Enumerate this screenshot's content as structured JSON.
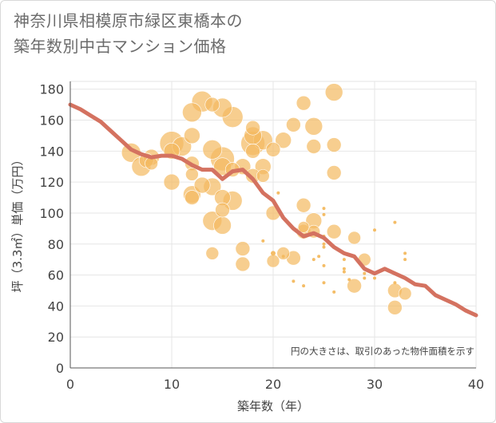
{
  "title_line1": "神奈川県相模原市緑区東橋本の",
  "title_line2": "築年数別中古マンション価格",
  "chart_data": {
    "type": "scatter",
    "title": "神奈川県相模原市緑区東橋本の築年数別中古マンション価格",
    "xlabel": "築年数（年）",
    "ylabel": "坪（3.3㎡）単価（万円）",
    "xlim": [
      0,
      40
    ],
    "ylim": [
      0,
      185
    ],
    "xticks": [
      0,
      10,
      20,
      30,
      40
    ],
    "yticks": [
      0,
      20,
      40,
      60,
      80,
      100,
      120,
      140,
      160,
      180
    ],
    "grid": true,
    "annotation": "円の大きさは、取引のあった物件面積を示す",
    "bubble_color": "#f3b95f",
    "line_color": "#d47260",
    "points": [
      {
        "x": 6,
        "y": 139,
        "s": 12
      },
      {
        "x": 7,
        "y": 130,
        "s": 12
      },
      {
        "x": 7.5,
        "y": 134,
        "s": 9
      },
      {
        "x": 8,
        "y": 136,
        "s": 10
      },
      {
        "x": 8,
        "y": 132,
        "s": 8
      },
      {
        "x": 10,
        "y": 145,
        "s": 15
      },
      {
        "x": 10,
        "y": 140,
        "s": 10
      },
      {
        "x": 10,
        "y": 120,
        "s": 10
      },
      {
        "x": 11,
        "y": 143,
        "s": 12
      },
      {
        "x": 12,
        "y": 165,
        "s": 12
      },
      {
        "x": 12,
        "y": 150,
        "s": 10
      },
      {
        "x": 12,
        "y": 132,
        "s": 9
      },
      {
        "x": 12,
        "y": 125,
        "s": 8
      },
      {
        "x": 12,
        "y": 112,
        "s": 11
      },
      {
        "x": 12,
        "y": 110,
        "s": 9
      },
      {
        "x": 13,
        "y": 172,
        "s": 13
      },
      {
        "x": 13,
        "y": 118,
        "s": 10
      },
      {
        "x": 14,
        "y": 170,
        "s": 9
      },
      {
        "x": 14,
        "y": 141,
        "s": 12
      },
      {
        "x": 14,
        "y": 117,
        "s": 11
      },
      {
        "x": 14,
        "y": 95,
        "s": 12
      },
      {
        "x": 14,
        "y": 74,
        "s": 8
      },
      {
        "x": 15,
        "y": 168,
        "s": 12
      },
      {
        "x": 15,
        "y": 135,
        "s": 15
      },
      {
        "x": 15,
        "y": 130,
        "s": 11
      },
      {
        "x": 15,
        "y": 110,
        "s": 10
      },
      {
        "x": 15,
        "y": 102,
        "s": 9
      },
      {
        "x": 15,
        "y": 92,
        "s": 11
      },
      {
        "x": 16,
        "y": 162,
        "s": 13
      },
      {
        "x": 16,
        "y": 128,
        "s": 9
      },
      {
        "x": 16,
        "y": 108,
        "s": 12
      },
      {
        "x": 17,
        "y": 130,
        "s": 10
      },
      {
        "x": 17,
        "y": 77,
        "s": 9
      },
      {
        "x": 17,
        "y": 67,
        "s": 9
      },
      {
        "x": 18,
        "y": 155,
        "s": 9
      },
      {
        "x": 18,
        "y": 150,
        "s": 11
      },
      {
        "x": 18,
        "y": 145,
        "s": 15
      },
      {
        "x": 18,
        "y": 140,
        "s": 9
      },
      {
        "x": 18,
        "y": 124,
        "s": 9
      },
      {
        "x": 19,
        "y": 147,
        "s": 12
      },
      {
        "x": 19,
        "y": 130,
        "s": 10
      },
      {
        "x": 19,
        "y": 124,
        "s": 8
      },
      {
        "x": 19,
        "y": 82,
        "s": 2
      },
      {
        "x": 20,
        "y": 141,
        "s": 9
      },
      {
        "x": 20,
        "y": 100,
        "s": 9
      },
      {
        "x": 20,
        "y": 74,
        "s": 3
      },
      {
        "x": 20,
        "y": 69,
        "s": 8
      },
      {
        "x": 20.5,
        "y": 113,
        "s": 2
      },
      {
        "x": 21,
        "y": 147,
        "s": 10
      },
      {
        "x": 21,
        "y": 74,
        "s": 8
      },
      {
        "x": 21,
        "y": 72,
        "s": 2
      },
      {
        "x": 22,
        "y": 157,
        "s": 9
      },
      {
        "x": 22,
        "y": 71,
        "s": 9
      },
      {
        "x": 22,
        "y": 56,
        "s": 2
      },
      {
        "x": 23,
        "y": 171,
        "s": 9
      },
      {
        "x": 23,
        "y": 105,
        "s": 9
      },
      {
        "x": 23,
        "y": 91,
        "s": 7
      },
      {
        "x": 23,
        "y": 88,
        "s": 9
      },
      {
        "x": 23,
        "y": 53,
        "s": 2
      },
      {
        "x": 24,
        "y": 156,
        "s": 11
      },
      {
        "x": 24,
        "y": 143,
        "s": 9
      },
      {
        "x": 24,
        "y": 95,
        "s": 10
      },
      {
        "x": 24,
        "y": 88,
        "s": 8
      },
      {
        "x": 24,
        "y": 70,
        "s": 2
      },
      {
        "x": 24.5,
        "y": 72,
        "s": 2
      },
      {
        "x": 25,
        "y": 103,
        "s": 2
      },
      {
        "x": 25,
        "y": 99,
        "s": 2
      },
      {
        "x": 25,
        "y": 85,
        "s": 2
      },
      {
        "x": 25,
        "y": 80,
        "s": 2
      },
      {
        "x": 25,
        "y": 78,
        "s": 2
      },
      {
        "x": 25,
        "y": 66,
        "s": 2
      },
      {
        "x": 25,
        "y": 55,
        "s": 2
      },
      {
        "x": 26,
        "y": 178,
        "s": 11
      },
      {
        "x": 26,
        "y": 144,
        "s": 9
      },
      {
        "x": 26,
        "y": 126,
        "s": 9
      },
      {
        "x": 26,
        "y": 88,
        "s": 9
      },
      {
        "x": 26,
        "y": 49,
        "s": 2
      },
      {
        "x": 27,
        "y": 70,
        "s": 2
      },
      {
        "x": 27,
        "y": 64,
        "s": 2
      },
      {
        "x": 27,
        "y": 62,
        "s": 2
      },
      {
        "x": 27.5,
        "y": 57,
        "s": 2
      },
      {
        "x": 28,
        "y": 84,
        "s": 8
      },
      {
        "x": 28,
        "y": 53,
        "s": 9
      },
      {
        "x": 29,
        "y": 70,
        "s": 8
      },
      {
        "x": 29,
        "y": 61,
        "s": 2
      },
      {
        "x": 29,
        "y": 58,
        "s": 2
      },
      {
        "x": 30,
        "y": 89,
        "s": 2
      },
      {
        "x": 30,
        "y": 58,
        "s": 2
      },
      {
        "x": 32,
        "y": 94,
        "s": 2
      },
      {
        "x": 32,
        "y": 55,
        "s": 2
      },
      {
        "x": 32,
        "y": 50,
        "s": 9
      },
      {
        "x": 32,
        "y": 39,
        "s": 9
      },
      {
        "x": 33,
        "y": 74,
        "s": 2
      },
      {
        "x": 33,
        "y": 70,
        "s": 2
      },
      {
        "x": 33,
        "y": 48,
        "s": 8
      }
    ],
    "trend": [
      {
        "x": 0,
        "y": 170
      },
      {
        "x": 1,
        "y": 167
      },
      {
        "x": 2,
        "y": 163
      },
      {
        "x": 3,
        "y": 159
      },
      {
        "x": 4,
        "y": 153
      },
      {
        "x": 5,
        "y": 147
      },
      {
        "x": 6,
        "y": 141
      },
      {
        "x": 7,
        "y": 138
      },
      {
        "x": 8,
        "y": 136
      },
      {
        "x": 9,
        "y": 137
      },
      {
        "x": 10,
        "y": 137
      },
      {
        "x": 11,
        "y": 135
      },
      {
        "x": 12,
        "y": 131
      },
      {
        "x": 13,
        "y": 128
      },
      {
        "x": 14,
        "y": 128
      },
      {
        "x": 15,
        "y": 122
      },
      {
        "x": 16,
        "y": 127
      },
      {
        "x": 17,
        "y": 128
      },
      {
        "x": 18,
        "y": 122
      },
      {
        "x": 19,
        "y": 113
      },
      {
        "x": 20,
        "y": 108
      },
      {
        "x": 21,
        "y": 97
      },
      {
        "x": 22,
        "y": 90
      },
      {
        "x": 23,
        "y": 85
      },
      {
        "x": 24,
        "y": 87
      },
      {
        "x": 25,
        "y": 84
      },
      {
        "x": 26,
        "y": 78
      },
      {
        "x": 27,
        "y": 74
      },
      {
        "x": 28,
        "y": 72
      },
      {
        "x": 29,
        "y": 64
      },
      {
        "x": 30,
        "y": 61
      },
      {
        "x": 31,
        "y": 64
      },
      {
        "x": 32,
        "y": 61
      },
      {
        "x": 33,
        "y": 58
      },
      {
        "x": 34,
        "y": 54
      },
      {
        "x": 35,
        "y": 53
      },
      {
        "x": 36,
        "y": 47
      },
      {
        "x": 37,
        "y": 44
      },
      {
        "x": 38,
        "y": 41
      },
      {
        "x": 39,
        "y": 37
      },
      {
        "x": 40,
        "y": 34
      }
    ]
  }
}
